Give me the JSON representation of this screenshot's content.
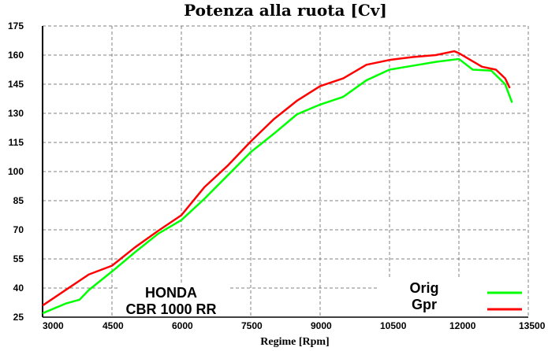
{
  "chart_data": {
    "type": "line",
    "title": "Potenza alla ruota  [Cv]",
    "xlabel": "Regime [Rpm]",
    "ylabel": "",
    "xlim": [
      3000,
      13500
    ],
    "ylim": [
      25,
      175
    ],
    "x_ticks": [
      3000,
      4500,
      6000,
      7500,
      9000,
      10500,
      12000,
      13500
    ],
    "y_ticks": [
      25,
      40,
      55,
      70,
      85,
      100,
      115,
      130,
      145,
      160,
      175
    ],
    "grid": true,
    "legend_placement": "bottom-right",
    "annotation": [
      "HONDA",
      "CBR 1000 RR"
    ],
    "series": [
      {
        "name": "Orig",
        "color": "#00ff00",
        "x": [
          3000,
          3500,
          3800,
          4000,
          4500,
          5000,
          5500,
          6000,
          6500,
          7000,
          7500,
          8000,
          8500,
          9000,
          9500,
          10000,
          10500,
          11000,
          11500,
          12000,
          12300,
          12700,
          13000,
          13150
        ],
        "y": [
          27,
          32,
          34,
          39,
          48.5,
          58.5,
          68,
          75,
          86,
          98,
          110,
          119.5,
          129.5,
          134.5,
          138.5,
          147,
          152.5,
          154.5,
          156.5,
          158,
          152.5,
          152,
          145,
          135.5
        ]
      },
      {
        "name": "Gpr",
        "color": "#ff0000",
        "x": [
          3000,
          3500,
          4000,
          4500,
          5000,
          5500,
          6000,
          6500,
          7000,
          7500,
          8000,
          8500,
          9000,
          9500,
          10000,
          10500,
          11000,
          11500,
          11900,
          12000,
          12500,
          12800,
          13000,
          13100
        ],
        "y": [
          31,
          39,
          47,
          51.5,
          61,
          69.5,
          77.5,
          92,
          103,
          115.5,
          127,
          136.5,
          144,
          148,
          155,
          157.5,
          159,
          160,
          162,
          161,
          154,
          152.5,
          148,
          143
        ]
      }
    ]
  }
}
